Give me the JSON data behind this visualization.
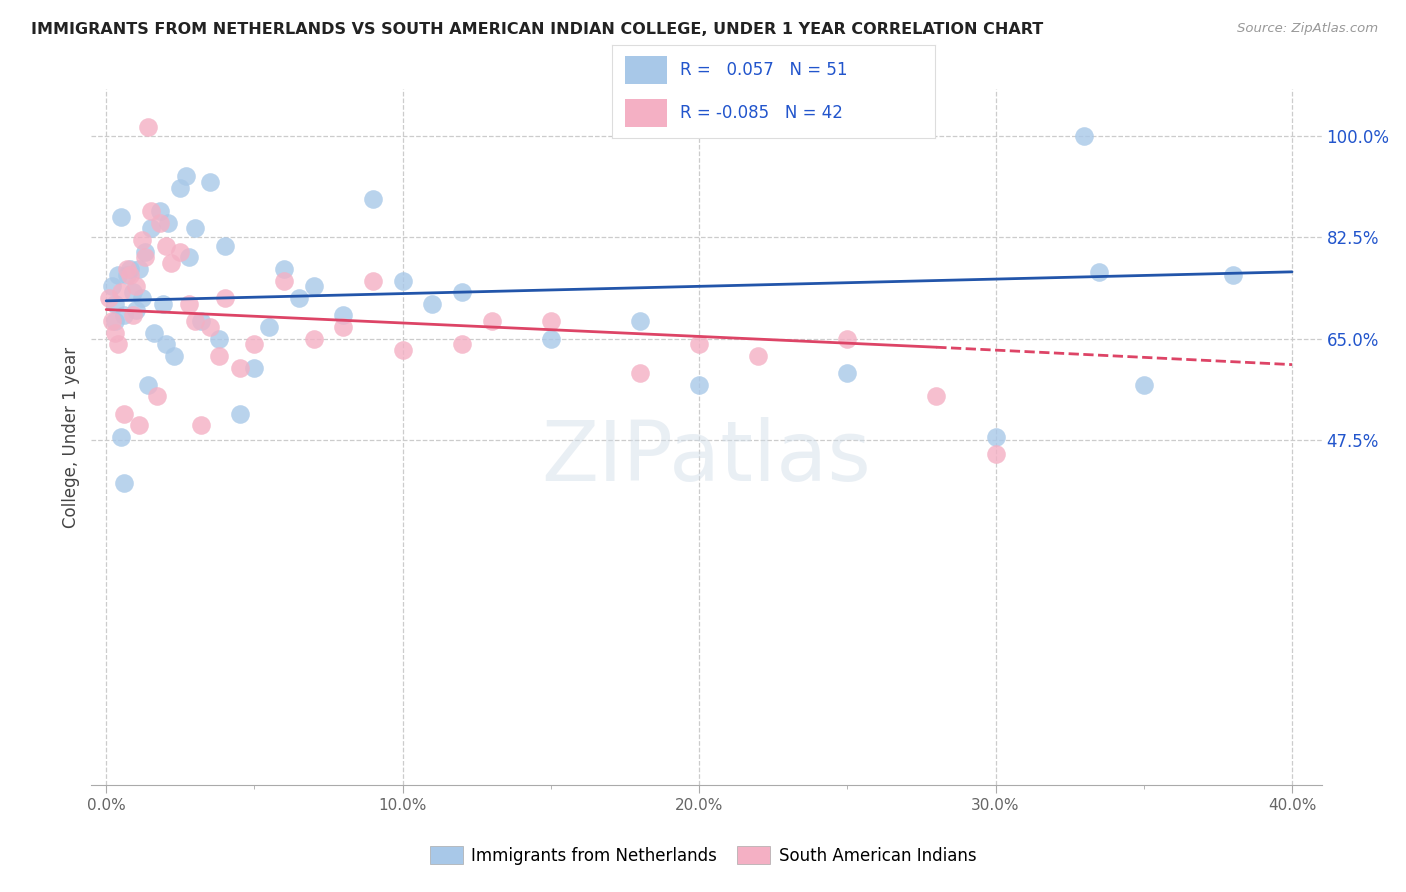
{
  "title": "IMMIGRANTS FROM NETHERLANDS VS SOUTH AMERICAN INDIAN COLLEGE, UNDER 1 YEAR CORRELATION CHART",
  "source": "Source: ZipAtlas.com",
  "ylabel": "College, Under 1 year",
  "x_tick_labels": [
    "0.0%",
    "",
    "10.0%",
    "",
    "20.0%",
    "",
    "30.0%",
    "",
    "40.0%"
  ],
  "x_tick_vals": [
    0.0,
    5.0,
    10.0,
    15.0,
    20.0,
    25.0,
    30.0,
    35.0,
    40.0
  ],
  "x_label_ticks": [
    0.0,
    10.0,
    20.0,
    30.0,
    40.0
  ],
  "x_label_strs": [
    "0.0%",
    "10.0%",
    "20.0%",
    "30.0%",
    "40.0%"
  ],
  "y_tick_labels_right": [
    "100.0%",
    "82.5%",
    "65.0%",
    "47.5%"
  ],
  "y_tick_vals": [
    100.0,
    82.5,
    65.0,
    47.5
  ],
  "xlim": [
    -0.5,
    41.0
  ],
  "ylim": [
    -12.0,
    108.0
  ],
  "blue_R": "0.057",
  "blue_N": "51",
  "pink_R": "-0.085",
  "pink_N": "42",
  "legend_label_blue": "Immigrants from Netherlands",
  "legend_label_pink": "South American Indians",
  "watermark": "ZIPatlas",
  "blue_color": "#a8c8e8",
  "pink_color": "#f4b0c4",
  "blue_line_color": "#2255aa",
  "pink_line_color": "#dd4466",
  "blue_scatter_x": [
    0.2,
    0.3,
    0.3,
    0.4,
    0.5,
    0.5,
    0.6,
    0.7,
    0.8,
    0.9,
    1.0,
    1.1,
    1.2,
    1.3,
    1.4,
    1.5,
    1.6,
    1.8,
    1.9,
    2.0,
    2.1,
    2.3,
    2.5,
    2.7,
    2.8,
    3.0,
    3.2,
    3.5,
    3.8,
    4.0,
    4.5,
    5.0,
    5.5,
    6.0,
    6.5,
    7.0,
    8.0,
    9.0,
    10.0,
    11.0,
    12.0,
    15.0,
    18.0,
    20.0,
    25.0,
    30.0,
    33.0,
    35.0,
    38.0,
    0.6,
    33.5
  ],
  "blue_scatter_y": [
    74.0,
    71.0,
    68.0,
    76.0,
    86.0,
    48.0,
    69.0,
    76.0,
    77.0,
    73.0,
    70.0,
    77.0,
    72.0,
    80.0,
    57.0,
    84.0,
    66.0,
    87.0,
    71.0,
    64.0,
    85.0,
    62.0,
    91.0,
    93.0,
    79.0,
    84.0,
    68.0,
    92.0,
    65.0,
    81.0,
    52.0,
    60.0,
    67.0,
    77.0,
    72.0,
    74.0,
    69.0,
    89.0,
    75.0,
    71.0,
    73.0,
    65.0,
    68.0,
    57.0,
    59.0,
    48.0,
    100.0,
    57.0,
    76.0,
    40.0,
    76.5
  ],
  "pink_scatter_x": [
    0.1,
    0.2,
    0.3,
    0.4,
    0.5,
    0.6,
    0.7,
    0.8,
    0.9,
    1.0,
    1.1,
    1.2,
    1.3,
    1.5,
    1.7,
    1.8,
    2.0,
    2.2,
    2.5,
    2.8,
    3.0,
    3.2,
    3.5,
    4.0,
    4.5,
    5.0,
    6.0,
    7.0,
    8.0,
    9.0,
    10.0,
    12.0,
    13.0,
    15.0,
    18.0,
    20.0,
    22.0,
    25.0,
    28.0,
    30.0,
    1.4,
    3.8
  ],
  "pink_scatter_y": [
    72.0,
    68.0,
    66.0,
    64.0,
    73.0,
    52.0,
    77.0,
    76.0,
    69.0,
    74.0,
    50.0,
    82.0,
    79.0,
    87.0,
    55.0,
    85.0,
    81.0,
    78.0,
    80.0,
    71.0,
    68.0,
    50.0,
    67.0,
    72.0,
    60.0,
    64.0,
    75.0,
    65.0,
    67.0,
    75.0,
    63.0,
    64.0,
    68.0,
    68.0,
    59.0,
    64.0,
    62.0,
    65.0,
    55.0,
    45.0,
    101.5,
    62.0
  ],
  "blue_line_x0": 0.0,
  "blue_line_x1": 40.0,
  "blue_line_y0": 71.5,
  "blue_line_y1": 76.5,
  "pink_line_x0": 0.0,
  "pink_line_x1": 28.0,
  "pink_line_y0": 70.0,
  "pink_line_y1": 63.5,
  "pink_dashed_x0": 28.0,
  "pink_dashed_x1": 40.0,
  "pink_dashed_y0": 63.5,
  "pink_dashed_y1": 60.5,
  "grid_color": "#cccccc",
  "stats_color": "#2255cc"
}
